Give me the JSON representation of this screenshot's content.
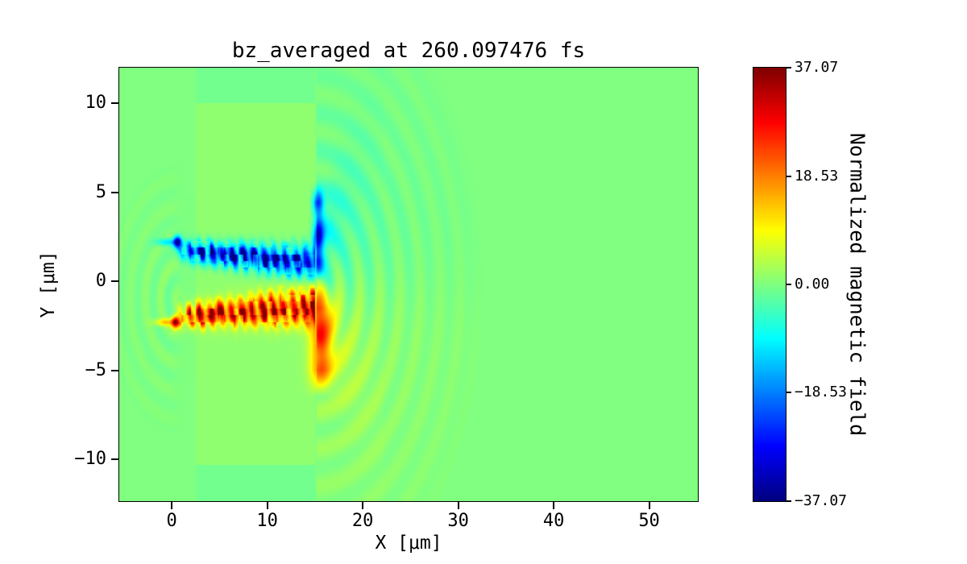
{
  "figure": {
    "background_color": "#ffffff"
  },
  "chart_data": {
    "type": "heatmap",
    "title": "bz_averaged at 260.097476 fs",
    "xlabel": "X [μm]",
    "ylabel": "Y [μm]",
    "colorbar_label": "Normalized magnetic field",
    "colormap": "jet",
    "grid": false,
    "x_range": [
      -5.5,
      55.1
    ],
    "y_range": [
      -12.35,
      12.0
    ],
    "clim": [
      -37.07,
      37.07
    ],
    "x_ticks": [
      {
        "v": 0,
        "label": "0"
      },
      {
        "v": 10,
        "label": "10"
      },
      {
        "v": 20,
        "label": "20"
      },
      {
        "v": 30,
        "label": "30"
      },
      {
        "v": 40,
        "label": "40"
      },
      {
        "v": 50,
        "label": "50"
      }
    ],
    "y_ticks": [
      {
        "v": 10,
        "label": "10"
      },
      {
        "v": 5,
        "label": "5"
      },
      {
        "v": 0,
        "label": "0"
      },
      {
        "v": -5,
        "label": "−5"
      },
      {
        "v": -10,
        "label": "−10"
      }
    ],
    "colorbar_ticks": [
      {
        "v": 37.07,
        "label": "37.07"
      },
      {
        "v": 18.53,
        "label": "18.53"
      },
      {
        "v": 0,
        "label": "0.00"
      },
      {
        "v": -18.53,
        "label": "−18.53"
      },
      {
        "v": -37.07,
        "label": "−37.07"
      }
    ],
    "features": {
      "background_value": 0,
      "slab": {
        "x": [
          2.5,
          15.0
        ],
        "y": [
          -10.3,
          10.0
        ],
        "tint": 1.2,
        "gap_tint": -1.0
      },
      "channel": {
        "x": [
          0.2,
          15.0
        ],
        "speckle_wavelength": 1.1,
        "blue_filament": {
          "y_center": 1.4,
          "width": 0.85,
          "amplitude": -34
        },
        "red_filament": {
          "y_center": -1.7,
          "width": 0.95,
          "amplitude": 34
        }
      },
      "rear_edge": {
        "x": 15.2,
        "blue_jet": {
          "y": [
            0,
            5.6
          ],
          "width": 0.55,
          "amplitude": -26
        },
        "orange_jet": {
          "y": [
            -6.5,
            0
          ],
          "width": 1.1,
          "amplitude": 18
        },
        "cyan_fan": {
          "amplitude": -9
        },
        "yellow_fan": {
          "amplitude": 7
        }
      },
      "wavefronts_right": {
        "center": [
          15.0,
          -0.5
        ],
        "r_max": 17.5,
        "wavelength": 2.1,
        "amplitude": 4.2
      },
      "wavefronts_left": {
        "center": [
          0.8,
          -1.0
        ],
        "r_max": 7.5,
        "wavelength": 1.6,
        "amplitude": 2.6
      },
      "seed_dots": [
        {
          "x": 0.6,
          "y": 2.2,
          "amplitude": -30
        },
        {
          "x": 0.4,
          "y": -2.3,
          "amplitude": 32
        }
      ]
    }
  }
}
